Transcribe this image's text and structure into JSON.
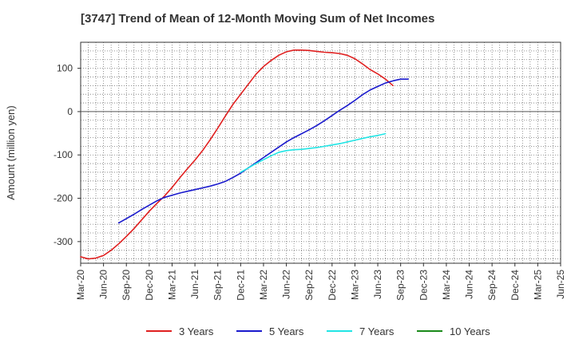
{
  "chart_data": {
    "type": "line",
    "title": "[3747]  Trend of Mean of 12-Month Moving Sum of Net Incomes",
    "ylabel": "Amount (million yen)",
    "xlabel": "",
    "ylim": [
      -350,
      160
    ],
    "yticks": [
      100,
      0,
      -100,
      -200,
      -300
    ],
    "x_tick_labels": [
      "Mar-20",
      "Jun-20",
      "Sep-20",
      "Dec-20",
      "Mar-21",
      "Jun-21",
      "Sep-21",
      "Dec-21",
      "Mar-22",
      "Jun-22",
      "Sep-22",
      "Dec-22",
      "Mar-23",
      "Jun-23",
      "Sep-23",
      "Dec-23",
      "Mar-24",
      "Jun-24",
      "Sep-24",
      "Dec-24",
      "Mar-25",
      "Jun-25"
    ],
    "grid": true,
    "legend_position": "bottom",
    "series": [
      {
        "name": "3 Years",
        "color": "#e02020",
        "values": [
          -335,
          -340,
          -338,
          -332,
          -320,
          -305,
          -288,
          -270,
          -250,
          -230,
          -212,
          -195,
          -175,
          -153,
          -132,
          -112,
          -90,
          -65,
          -38,
          -10,
          17,
          40,
          63,
          86,
          104,
          118,
          130,
          138,
          142,
          142,
          141,
          139,
          137,
          136,
          134,
          130,
          122,
          110,
          97,
          87,
          75,
          60
        ]
      },
      {
        "name": "5 Years",
        "color": "#1a1acd",
        "values": [
          null,
          null,
          null,
          null,
          null,
          -257,
          -247,
          -237,
          -226,
          -216,
          -206,
          -198,
          -193,
          -188,
          -184,
          -180,
          -176,
          -172,
          -167,
          -161,
          -152,
          -142,
          -130,
          -118,
          -106,
          -94,
          -82,
          -70,
          -60,
          -51,
          -42,
          -32,
          -21,
          -9,
          3,
          14,
          26,
          39,
          50,
          58,
          66,
          71,
          75,
          75
        ]
      },
      {
        "name": "7 Years",
        "color": "#22e5e5",
        "values": [
          null,
          null,
          null,
          null,
          null,
          null,
          null,
          null,
          null,
          null,
          null,
          null,
          null,
          null,
          null,
          null,
          null,
          null,
          null,
          null,
          null,
          -140,
          -130,
          -120,
          -111,
          -102,
          -94,
          -90,
          -88,
          -87,
          -85,
          -83,
          -80,
          -77,
          -74,
          -70,
          -66,
          -62,
          -58,
          -55,
          -51
        ]
      },
      {
        "name": "10 Years",
        "color": "#1a8a1a",
        "values": []
      }
    ]
  }
}
